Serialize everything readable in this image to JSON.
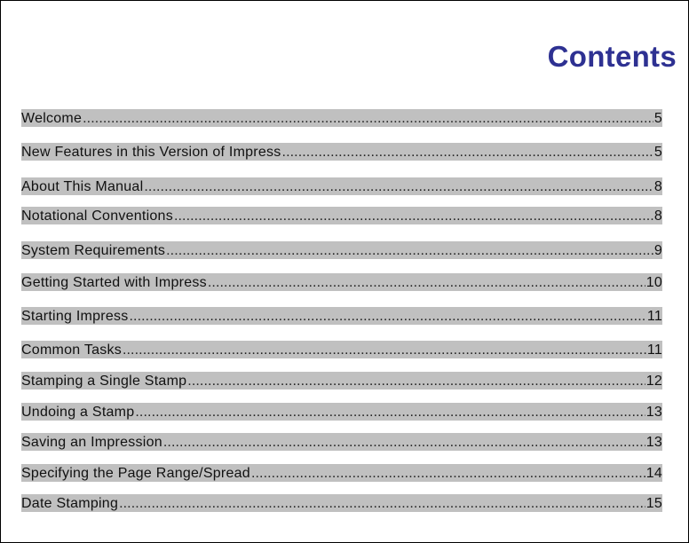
{
  "title": "Contents",
  "colors": {
    "title": "#2e3192",
    "row_highlight": "#c0c0c0",
    "border": "#000000",
    "background": "#ffffff"
  },
  "entries": [
    {
      "label": "Welcome",
      "page": "5"
    },
    {
      "label": "New Features in this Version of Impress",
      "page": "5"
    },
    {
      "label": "About This Manual",
      "page": "8"
    },
    {
      "label": "Notational Conventions",
      "page": "8"
    },
    {
      "label": "System Requirements",
      "page": "9"
    },
    {
      "label": "Getting Started with Impress",
      "page": "10"
    },
    {
      "label": "Starting Impress",
      "page": "11"
    },
    {
      "label": "Common Tasks",
      "page": "11"
    },
    {
      "label": "Stamping a Single Stamp",
      "page": "12"
    },
    {
      "label": "Undoing a Stamp",
      "page": "13"
    },
    {
      "label": "Saving an Impression",
      "page": "13"
    },
    {
      "label": "Specifying the Page Range/Spread",
      "page": "14"
    },
    {
      "label": "Date Stamping",
      "page": "15"
    }
  ]
}
